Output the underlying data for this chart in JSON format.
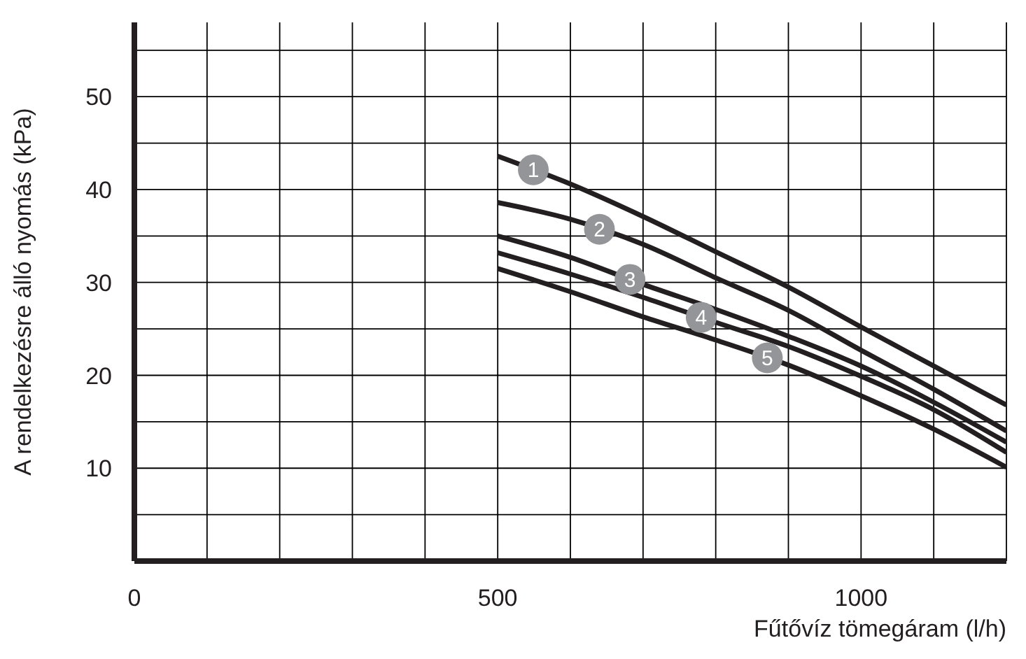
{
  "chart_data": {
    "type": "line",
    "xlabel": "Fűtővíz tömegáram (l/h)",
    "ylabel": "A rendelkezésre álló nyomás (kPa)",
    "x": [
      500,
      600,
      700,
      800,
      900,
      1000,
      1100,
      1200
    ],
    "series": [
      {
        "name": "1",
        "color": "#231f20",
        "values": [
          43.6,
          40.6,
          37.1,
          33.3,
          29.5,
          25.2,
          21.0,
          16.8
        ]
      },
      {
        "name": "2",
        "color": "#231f20",
        "values": [
          38.6,
          36.8,
          34.1,
          30.5,
          27.0,
          22.7,
          18.5,
          14.0
        ]
      },
      {
        "name": "3",
        "color": "#231f20",
        "values": [
          35.0,
          32.7,
          29.8,
          27.1,
          24.2,
          21.0,
          17.1,
          12.8
        ]
      },
      {
        "name": "4",
        "color": "#231f20",
        "values": [
          33.2,
          30.9,
          28.4,
          25.7,
          23.1,
          19.9,
          16.3,
          11.7
        ]
      },
      {
        "name": "5",
        "color": "#231f20",
        "values": [
          31.5,
          29.0,
          26.3,
          23.8,
          21.1,
          17.8,
          14.2,
          10.1
        ]
      }
    ],
    "xlim": [
      0,
      1200
    ],
    "xticks": [
      0,
      {
        "value": 100,
        "label": null
      },
      {
        "value": 200,
        "label": null
      },
      {
        "value": 300,
        "label": null
      },
      {
        "value": 400,
        "label": null
      },
      500,
      {
        "value": 600,
        "label": null
      },
      {
        "value": 700,
        "label": null
      },
      {
        "value": 800,
        "label": null
      },
      {
        "value": 900,
        "label": null
      },
      1000,
      {
        "value": 1100,
        "label": null
      },
      {
        "value": 1200,
        "label": null
      }
    ],
    "ylim": [
      0,
      58
    ],
    "yticks": [
      {
        "value": 5,
        "label": null
      },
      10,
      {
        "value": 15,
        "label": null
      },
      20,
      {
        "value": 25,
        "label": null
      },
      30,
      {
        "value": 35,
        "label": null
      },
      40,
      {
        "value": 45,
        "label": null
      },
      50,
      {
        "value": 55,
        "label": null
      }
    ],
    "grid": true,
    "legend": false,
    "marker": "none",
    "line_style": "solid"
  }
}
